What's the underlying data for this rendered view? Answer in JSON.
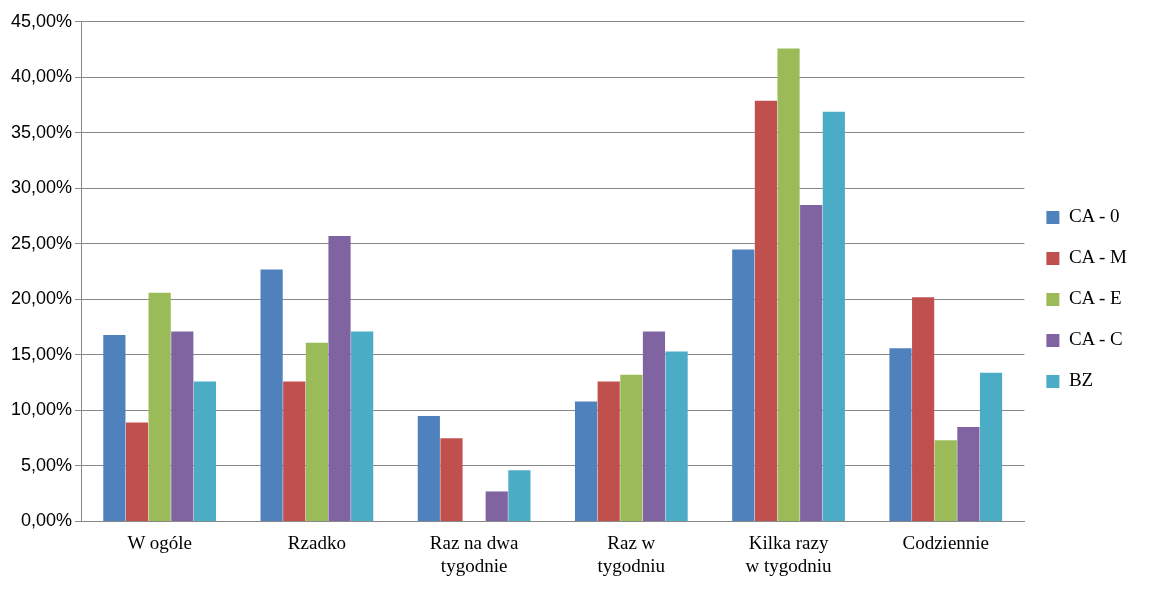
{
  "chart_data": {
    "type": "bar",
    "categories": [
      "W ogóle",
      "Rzadko",
      "Raz na dwa tygodnie",
      "Raz w tygodniu",
      "Kilka razy w tygodniu",
      "Codziennie"
    ],
    "series": [
      {
        "name": "CA - 0",
        "color": "#4f81bd",
        "values": [
          16.8,
          22.7,
          9.5,
          10.8,
          24.5,
          15.6
        ]
      },
      {
        "name": "CA - M",
        "color": "#c0504d",
        "values": [
          8.9,
          12.6,
          7.5,
          12.6,
          37.9,
          20.2
        ]
      },
      {
        "name": "CA - E",
        "color": "#9bbb59",
        "values": [
          20.6,
          16.1,
          0,
          13.2,
          42.6,
          7.3
        ]
      },
      {
        "name": "CA - C",
        "color": "#8064a2",
        "values": [
          17.1,
          25.7,
          2.7,
          17.1,
          28.5,
          8.5
        ]
      },
      {
        "name": "BZ",
        "color": "#4bacc6",
        "values": [
          12.6,
          17.1,
          4.6,
          15.3,
          36.9,
          13.4
        ]
      }
    ],
    "ylim": [
      0,
      45
    ],
    "yticks": [
      {
        "value": 0,
        "label": "0,00%"
      },
      {
        "value": 5,
        "label": "5,00%"
      },
      {
        "value": 10,
        "label": "10,00%"
      },
      {
        "value": 15,
        "label": "15,00%"
      },
      {
        "value": 20,
        "label": "20,00%"
      },
      {
        "value": 25,
        "label": "25,00%"
      },
      {
        "value": 30,
        "label": "30,00%"
      },
      {
        "value": 35,
        "label": "35,00%"
      },
      {
        "value": 40,
        "label": "40,00%"
      },
      {
        "value": 45,
        "label": "45,00%"
      }
    ],
    "grid": "y",
    "legend": "right"
  }
}
